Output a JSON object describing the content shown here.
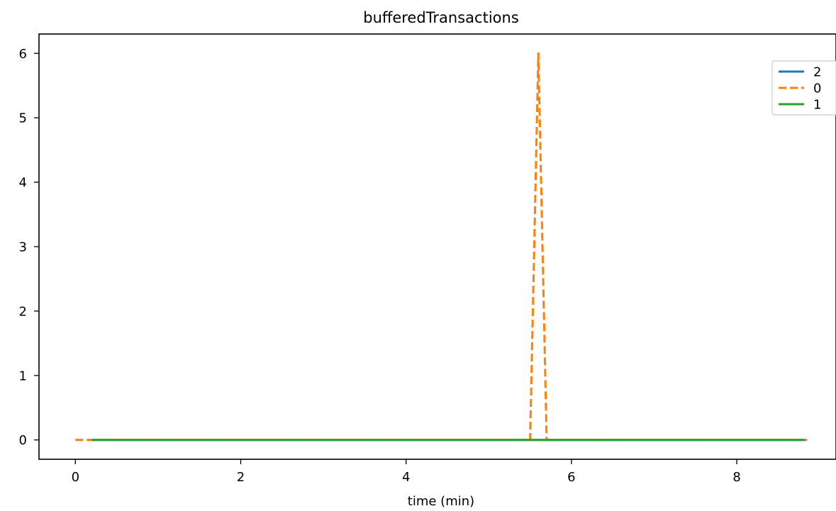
{
  "chart_data": {
    "type": "line",
    "title": "bufferedTransactions",
    "xlabel": "time (min)",
    "ylabel": "",
    "xlim": [
      -0.44,
      9.2
    ],
    "ylim": [
      -0.3,
      6.3
    ],
    "xticks": [
      0,
      2,
      4,
      6,
      8
    ],
    "yticks": [
      0,
      1,
      2,
      3,
      4,
      5,
      6
    ],
    "grid": false,
    "legend_position": "top-right",
    "series": [
      {
        "name": "2",
        "color": "#1f77b4",
        "style": "solid",
        "x": [
          0.15,
          8.85
        ],
        "y": [
          0,
          0
        ]
      },
      {
        "name": "0",
        "color": "#ff7f0e",
        "style": "dashed",
        "x": [
          0.0,
          5.5,
          5.6,
          5.7,
          8.85
        ],
        "y": [
          0,
          0,
          6,
          0,
          0
        ]
      },
      {
        "name": "1",
        "color": "#2ca02c",
        "style": "solid",
        "x": [
          0.2,
          8.8
        ],
        "y": [
          0,
          0
        ]
      }
    ]
  }
}
